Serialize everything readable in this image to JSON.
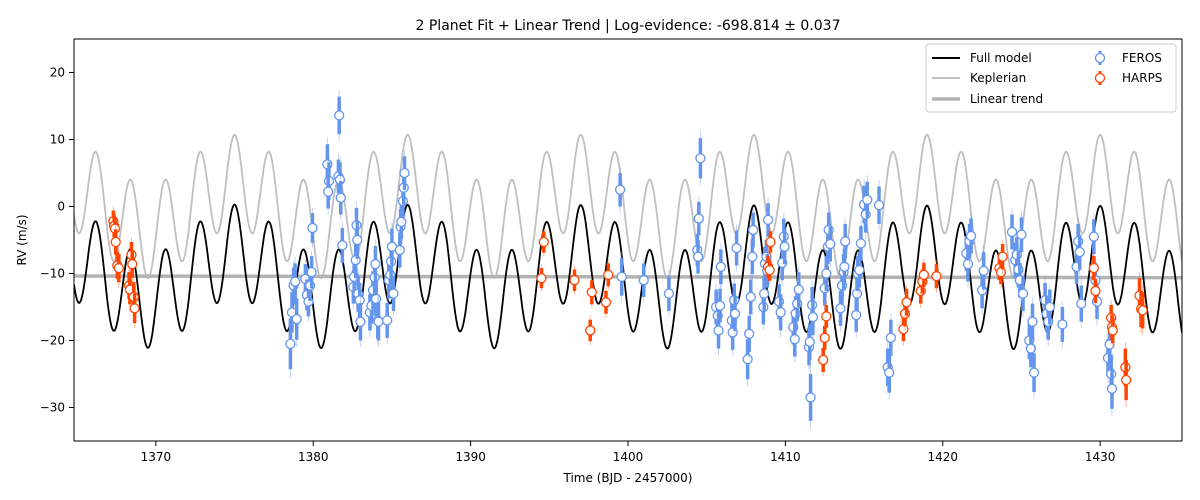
{
  "chart_data": {
    "type": "scatter",
    "title": "2 Planet Fit + Linear Trend | Log-evidence: -698.814 ± 0.037",
    "xlabel": "Time (BJD - 2457000)",
    "ylabel": "RV (m/s)",
    "xlim": [
      1364.8,
      1435.2
    ],
    "ylim": [
      -35,
      25
    ],
    "xticks": [
      1370,
      1380,
      1390,
      1400,
      1410,
      1420,
      1430
    ],
    "yticks": [
      -30,
      -20,
      -10,
      0,
      10,
      20
    ],
    "grid": false,
    "legend_position": "top-right",
    "legend_labels": {
      "full_model": "Full model",
      "keplerian": "Keplerian",
      "linear_trend": "Linear trend",
      "feros": "FEROS",
      "harps": "HARPS"
    },
    "colors": {
      "full_model": "#000000",
      "keplerian": "#bfbfbf",
      "linear_trend": "#b3b3b3",
      "feros": "#6495ed",
      "harps": "#ff4500"
    },
    "model": {
      "offset": -10.5,
      "trend_slope": -0.0035,
      "trend_ref_time": 1400,
      "planets": [
        {
          "period": 2.2,
          "semi_amplitude": 7.0
        },
        {
          "period": 11.0,
          "semi_amplitude": 3.7
        }
      ]
    },
    "series": [
      {
        "name": "FEROS",
        "points": [
          [
            1378.55,
            -20.5,
            3.8
          ],
          [
            1378.65,
            -15.8,
            3.0
          ],
          [
            1378.75,
            -11.8,
            2.7
          ],
          [
            1378.85,
            -11.2,
            2.7
          ],
          [
            1378.95,
            -16.8,
            3.1
          ],
          [
            1379.5,
            -10.8,
            2.2
          ],
          [
            1379.6,
            -13.2,
            2.3
          ],
          [
            1379.7,
            -14.2,
            2.2
          ],
          [
            1379.8,
            -11.8,
            2.3
          ],
          [
            1379.9,
            -9.8,
            2.4
          ],
          [
            1379.95,
            -3.2,
            2.2
          ],
          [
            1380.9,
            6.3,
            3.0
          ],
          [
            1381.0,
            3.8,
            2.8
          ],
          [
            1380.95,
            2.2,
            2.5
          ],
          [
            1381.6,
            4.5,
            2.5
          ],
          [
            1381.7,
            4.0,
            2.6
          ],
          [
            1381.75,
            1.3,
            2.5
          ],
          [
            1381.65,
            13.6,
            2.8
          ],
          [
            1381.85,
            -5.8,
            2.6
          ],
          [
            1382.55,
            -12.0,
            2.5
          ],
          [
            1382.6,
            -10.5,
            2.6
          ],
          [
            1382.7,
            -8.0,
            2.7
          ],
          [
            1382.75,
            -2.8,
            2.6
          ],
          [
            1382.8,
            -5.0,
            2.8
          ],
          [
            1382.85,
            -13.0,
            2.7
          ],
          [
            1382.95,
            -14.0,
            2.6
          ],
          [
            1383.0,
            -17.2,
            2.8
          ],
          [
            1383.6,
            -15.8,
            2.7
          ],
          [
            1383.7,
            -14.8,
            2.7
          ],
          [
            1383.8,
            -12.5,
            2.8
          ],
          [
            1383.9,
            -10.6,
            2.7
          ],
          [
            1383.95,
            -8.6,
            2.7
          ],
          [
            1384.0,
            -13.8,
            2.6
          ],
          [
            1384.1,
            -17.0,
            2.7
          ],
          [
            1384.15,
            -17.2,
            2.8
          ],
          [
            1384.7,
            -17.0,
            2.6
          ],
          [
            1384.8,
            -11.0,
            2.7
          ],
          [
            1384.9,
            -10.2,
            2.6
          ],
          [
            1384.95,
            -8.2,
            2.6
          ],
          [
            1385.0,
            -6.0,
            2.7
          ],
          [
            1385.1,
            -13.0,
            2.6
          ],
          [
            1385.5,
            -6.5,
            2.6
          ],
          [
            1385.55,
            -3.0,
            2.6
          ],
          [
            1385.6,
            -2.3,
            2.6
          ],
          [
            1385.7,
            0.8,
            2.5
          ],
          [
            1385.75,
            2.8,
            2.5
          ],
          [
            1385.8,
            5.0,
            2.5
          ],
          [
            1399.5,
            2.5,
            2.5
          ],
          [
            1399.6,
            -10.5,
            2.8
          ],
          [
            1401.0,
            -11.0,
            2.5
          ],
          [
            1402.6,
            -13.0,
            2.6
          ],
          [
            1404.4,
            -6.5,
            2.4
          ],
          [
            1404.45,
            -7.5,
            2.5
          ],
          [
            1404.5,
            -1.8,
            2.5
          ],
          [
            1404.6,
            7.2,
            3.0
          ],
          [
            1405.6,
            -15.0,
            2.6
          ],
          [
            1405.7,
            -16.3,
            2.6
          ],
          [
            1405.75,
            -18.5,
            2.7
          ],
          [
            1405.85,
            -14.8,
            2.5
          ],
          [
            1405.9,
            -9.0,
            2.6
          ],
          [
            1406.6,
            -17.0,
            2.6
          ],
          [
            1406.65,
            -18.8,
            2.6
          ],
          [
            1406.75,
            -14.0,
            2.5
          ],
          [
            1406.8,
            -16.0,
            2.6
          ],
          [
            1406.9,
            -6.2,
            2.6
          ],
          [
            1407.6,
            -22.8,
            3.0
          ],
          [
            1407.7,
            -19.0,
            2.7
          ],
          [
            1407.8,
            -13.5,
            2.6
          ],
          [
            1407.9,
            -7.5,
            2.6
          ],
          [
            1407.95,
            -3.5,
            2.6
          ],
          [
            1408.6,
            -15.0,
            2.6
          ],
          [
            1408.65,
            -13.0,
            2.6
          ],
          [
            1408.7,
            -8.5,
            2.5
          ],
          [
            1408.8,
            -7.5,
            2.5
          ],
          [
            1408.85,
            -9.6,
            2.5
          ],
          [
            1408.9,
            -2.0,
            2.5
          ],
          [
            1409.6,
            -14.2,
            2.6
          ],
          [
            1409.7,
            -15.8,
            2.7
          ],
          [
            1409.8,
            -8.4,
            2.6
          ],
          [
            1409.9,
            -4.5,
            2.7
          ],
          [
            1409.95,
            -6.0,
            2.6
          ],
          [
            1410.5,
            -18.0,
            2.6
          ],
          [
            1410.6,
            -19.8,
            2.6
          ],
          [
            1410.65,
            -16.0,
            2.6
          ],
          [
            1410.75,
            -14.5,
            2.6
          ],
          [
            1410.85,
            -12.4,
            2.6
          ],
          [
            1411.5,
            -21.0,
            2.7
          ],
          [
            1411.55,
            -20.2,
            2.7
          ],
          [
            1411.6,
            -28.5,
            3.5
          ],
          [
            1411.7,
            -14.7,
            2.7
          ],
          [
            1411.75,
            -16.5,
            2.7
          ],
          [
            1412.5,
            -12.2,
            2.6
          ],
          [
            1412.6,
            -10.0,
            2.6
          ],
          [
            1412.7,
            -6.0,
            2.6
          ],
          [
            1412.75,
            -3.5,
            2.6
          ],
          [
            1412.85,
            -5.6,
            2.6
          ],
          [
            1413.5,
            -15.2,
            2.6
          ],
          [
            1413.6,
            -11.8,
            2.7
          ],
          [
            1413.7,
            -9.8,
            2.7
          ],
          [
            1413.75,
            -9.0,
            2.7
          ],
          [
            1413.8,
            -5.2,
            2.6
          ],
          [
            1414.5,
            -16.2,
            2.5
          ],
          [
            1414.55,
            -13.0,
            2.6
          ],
          [
            1414.6,
            -10.0,
            2.6
          ],
          [
            1414.7,
            -9.5,
            2.6
          ],
          [
            1414.8,
            -5.5,
            2.6
          ],
          [
            1415.0,
            0.3,
            2.8
          ],
          [
            1415.1,
            -1.2,
            2.7
          ],
          [
            1415.2,
            1.0,
            2.7
          ],
          [
            1415.95,
            0.2,
            2.8
          ],
          [
            1416.5,
            -24.0,
            2.8
          ],
          [
            1416.6,
            -24.8,
            3.0
          ],
          [
            1416.7,
            -19.6,
            2.7
          ],
          [
            1421.5,
            -7.0,
            2.6
          ],
          [
            1421.6,
            -8.6,
            2.6
          ],
          [
            1421.7,
            -5.2,
            2.6
          ],
          [
            1421.8,
            -4.4,
            2.6
          ],
          [
            1422.5,
            -12.5,
            2.7
          ],
          [
            1422.6,
            -9.6,
            2.8
          ],
          [
            1424.4,
            -3.8,
            2.6
          ],
          [
            1424.6,
            -8.0,
            2.6
          ],
          [
            1424.7,
            -7.2,
            2.6
          ],
          [
            1424.8,
            -9.4,
            2.7
          ],
          [
            1424.9,
            -11.0,
            2.6
          ],
          [
            1425.0,
            -4.2,
            2.6
          ],
          [
            1425.1,
            -13.0,
            2.6
          ],
          [
            1425.5,
            -20.0,
            2.8
          ],
          [
            1425.6,
            -21.2,
            2.8
          ],
          [
            1425.7,
            -17.2,
            2.7
          ],
          [
            1425.8,
            -24.8,
            2.9
          ],
          [
            1426.5,
            -14.0,
            2.6
          ],
          [
            1426.6,
            -16.0,
            2.7
          ],
          [
            1426.7,
            -17.2,
            2.7
          ],
          [
            1426.8,
            -15.0,
            2.6
          ],
          [
            1427.6,
            -17.6,
            2.6
          ],
          [
            1428.5,
            -9.0,
            2.6
          ],
          [
            1428.6,
            -5.2,
            2.6
          ],
          [
            1428.7,
            -6.8,
            2.6
          ],
          [
            1428.8,
            -14.5,
            2.7
          ],
          [
            1429.6,
            -4.5,
            2.6
          ],
          [
            1429.7,
            -11.0,
            2.6
          ],
          [
            1429.8,
            -14.2,
            2.6
          ],
          [
            1430.5,
            -22.6,
            2.8
          ],
          [
            1430.6,
            -20.6,
            2.8
          ],
          [
            1430.7,
            -25.0,
            2.9
          ],
          [
            1430.75,
            -27.2,
            3.0
          ]
        ]
      },
      {
        "name": "HARPS",
        "points": [
          [
            1367.3,
            -2.2,
            1.6
          ],
          [
            1367.35,
            -2.9,
            1.7
          ],
          [
            1367.4,
            -3.3,
            1.7
          ],
          [
            1367.45,
            -5.3,
            1.9
          ],
          [
            1367.55,
            -8.8,
            2.0
          ],
          [
            1367.65,
            -9.2,
            2.1
          ],
          [
            1368.3,
            -11.8,
            2.0
          ],
          [
            1368.35,
            -12.4,
            2.2
          ],
          [
            1368.45,
            -7.2,
            1.9
          ],
          [
            1368.5,
            -8.6,
            2.0
          ],
          [
            1368.6,
            -13.5,
            2.2
          ],
          [
            1368.65,
            -15.2,
            2.2
          ],
          [
            1394.5,
            -10.7,
            1.5
          ],
          [
            1394.65,
            -5.3,
            1.6
          ],
          [
            1396.6,
            -11.0,
            1.6
          ],
          [
            1397.6,
            -18.5,
            1.6
          ],
          [
            1397.7,
            -12.8,
            1.8
          ],
          [
            1398.6,
            -14.3,
            1.7
          ],
          [
            1398.75,
            -10.2,
            1.7
          ],
          [
            1408.9,
            -9.0,
            1.6
          ],
          [
            1409.0,
            -9.5,
            1.6
          ],
          [
            1409.05,
            -5.3,
            1.6
          ],
          [
            1412.4,
            -22.9,
            1.8
          ],
          [
            1412.5,
            -19.6,
            1.8
          ],
          [
            1412.6,
            -16.4,
            1.7
          ],
          [
            1417.5,
            -18.3,
            1.8
          ],
          [
            1417.6,
            -16.0,
            1.9
          ],
          [
            1417.7,
            -14.3,
            2.0
          ],
          [
            1418.6,
            -12.6,
            1.9
          ],
          [
            1418.7,
            -11.2,
            1.8
          ],
          [
            1418.8,
            -10.2,
            1.8
          ],
          [
            1419.6,
            -10.4,
            1.8
          ],
          [
            1423.6,
            -9.2,
            1.8
          ],
          [
            1423.7,
            -9.8,
            1.8
          ],
          [
            1423.8,
            -7.5,
            1.9
          ],
          [
            1429.6,
            -9.2,
            1.8
          ],
          [
            1429.7,
            -12.6,
            1.8
          ],
          [
            1430.7,
            -16.6,
            1.9
          ],
          [
            1430.75,
            -18.0,
            1.9
          ],
          [
            1430.8,
            -18.5,
            1.9
          ],
          [
            1431.6,
            -24.0,
            2.8
          ],
          [
            1431.65,
            -25.9,
            3.0
          ],
          [
            1432.5,
            -13.3,
            2.6
          ],
          [
            1432.6,
            -15.3,
            2.7
          ],
          [
            1432.7,
            -15.5,
            2.7
          ]
        ]
      }
    ]
  }
}
